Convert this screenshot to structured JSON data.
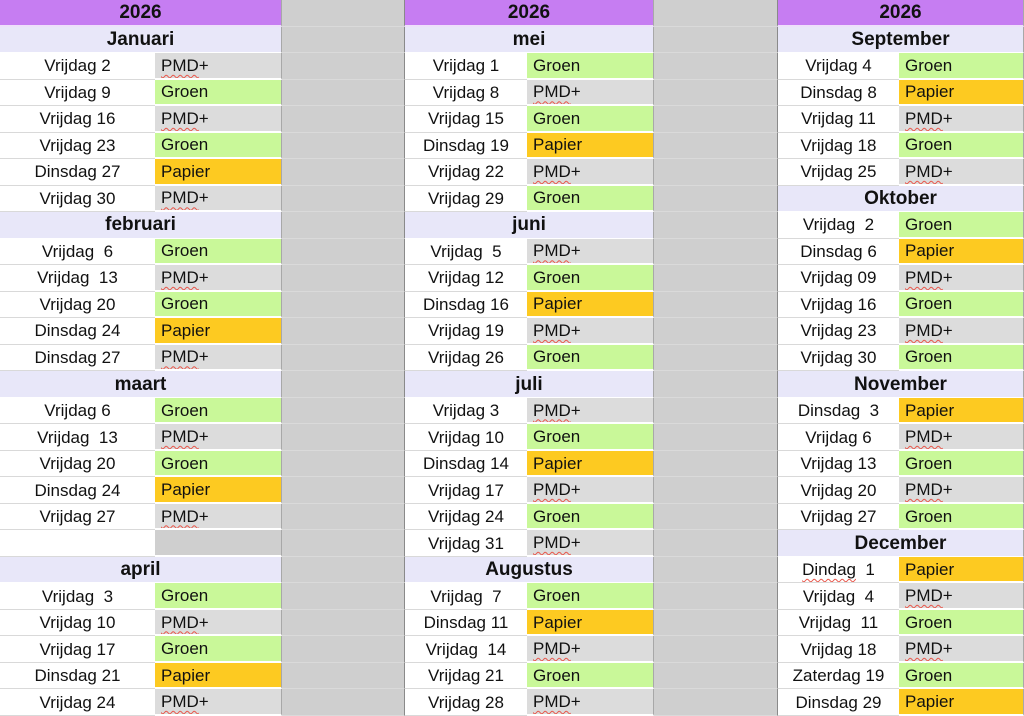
{
  "palette": {
    "year_bg": "#c67df2",
    "month_bg": "#e8e7f9",
    "date_bg": "#ffffff",
    "band_bg": "#cfcfcf",
    "band_line": "#dadada",
    "empty_cell": "#cfcfcf",
    "squiggle": "#e8564a"
  },
  "type_colors": {
    "PMD+": "#dcdcdc",
    "Groen": "#c9f899",
    "Papier": "#fdca21"
  },
  "columns": [
    {
      "year": "2026",
      "months": [
        {
          "name": "Januari",
          "rows": [
            {
              "day": "Vrijdag 2",
              "type": "PMD+"
            },
            {
              "day": "Vrijdag 9",
              "type": "Groen"
            },
            {
              "day": "Vrijdag 16",
              "type": "PMD+"
            },
            {
              "day": "Vrijdag 23",
              "type": "Groen"
            },
            {
              "day": "Dinsdag 27",
              "type": "Papier"
            },
            {
              "day": "Vrijdag 30",
              "type": "PMD+"
            }
          ]
        },
        {
          "name": "februari",
          "rows": [
            {
              "day": "Vrijdag  6",
              "type": "Groen"
            },
            {
              "day": "Vrijdag  13",
              "type": "PMD+"
            },
            {
              "day": "Vrijdag 20",
              "type": "Groen"
            },
            {
              "day": "Dinsdag 24",
              "type": "Papier"
            },
            {
              "day": "Dinsdag 27",
              "type": "PMD+"
            }
          ]
        },
        {
          "name": "maart",
          "rows": [
            {
              "day": "Vrijdag 6",
              "type": "Groen"
            },
            {
              "day": "Vrijdag  13",
              "type": "PMD+"
            },
            {
              "day": "Vrijdag 20",
              "type": "Groen"
            },
            {
              "day": "Dinsdag 24",
              "type": "Papier"
            },
            {
              "day": "Vrijdag 27",
              "type": "PMD+"
            },
            {
              "day": "",
              "type": "",
              "empty": true
            }
          ]
        },
        {
          "name": "april",
          "rows": [
            {
              "day": "Vrijdag  3",
              "type": "Groen"
            },
            {
              "day": "Vrijdag 10",
              "type": "PMD+"
            },
            {
              "day": "Vrijdag 17",
              "type": "Groen"
            },
            {
              "day": "Dinsdag 21",
              "type": "Papier"
            },
            {
              "day": "Vrijdag 24",
              "type": "PMD+"
            }
          ]
        }
      ]
    },
    {
      "year": "2026",
      "months": [
        {
          "name": "mei",
          "rows": [
            {
              "day": "Vrijdag 1",
              "type": "Groen"
            },
            {
              "day": "Vrijdag 8",
              "type": "PMD+"
            },
            {
              "day": "Vrijdag 15",
              "type": "Groen"
            },
            {
              "day": "Dinsdag 19",
              "type": "Papier"
            },
            {
              "day": "Vrijdag 22",
              "type": "PMD+"
            },
            {
              "day": "Vrijdag 29",
              "type": "Groen"
            }
          ]
        },
        {
          "name": "juni",
          "rows": [
            {
              "day": "Vrijdag  5",
              "type": "PMD+"
            },
            {
              "day": "Vrijdag 12",
              "type": "Groen"
            },
            {
              "day": "Dinsdag 16",
              "type": "Papier"
            },
            {
              "day": "Vrijdag 19",
              "type": "PMD+"
            },
            {
              "day": "Vrijdag 26",
              "type": "Groen"
            }
          ]
        },
        {
          "name": "juli",
          "rows": [
            {
              "day": "Vrijdag 3",
              "type": "PMD+"
            },
            {
              "day": "Vrijdag 10",
              "type": "Groen"
            },
            {
              "day": "Dinsdag 14",
              "type": "Papier"
            },
            {
              "day": "Vrijdag 17",
              "type": "PMD+"
            },
            {
              "day": "Vrijdag 24",
              "type": "Groen"
            },
            {
              "day": "Vrijdag 31",
              "type": "PMD+"
            }
          ]
        },
        {
          "name": "Augustus",
          "rows": [
            {
              "day": "Vrijdag  7",
              "type": "Groen"
            },
            {
              "day": "Dinsdag 11",
              "type": "Papier"
            },
            {
              "day": "Vrijdag  14",
              "type": "PMD+"
            },
            {
              "day": "Vrijdag 21",
              "type": "Groen"
            },
            {
              "day": "Vrijdag 28",
              "type": "PMD+"
            }
          ]
        }
      ]
    },
    {
      "year": "2026",
      "months": [
        {
          "name": "September",
          "rows": [
            {
              "day": "Vrijdag 4",
              "type": "Groen"
            },
            {
              "day": "Dinsdag 8",
              "type": "Papier"
            },
            {
              "day": "Vrijdag 11",
              "type": "PMD+"
            },
            {
              "day": "Vrijdag 18",
              "type": "Groen"
            },
            {
              "day": "Vrijdag 25",
              "type": "PMD+"
            }
          ]
        },
        {
          "name": "Oktober",
          "rows": [
            {
              "day": "Vrijdag  2",
              "type": "Groen"
            },
            {
              "day": "Dinsdag 6",
              "type": "Papier"
            },
            {
              "day": "Vrijdag 09",
              "type": "PMD+"
            },
            {
              "day": "Vrijdag 16",
              "type": "Groen"
            },
            {
              "day": "Vrijdag 23",
              "type": "PMD+"
            },
            {
              "day": "Vrijdag 30",
              "type": "Groen"
            }
          ]
        },
        {
          "name": "November",
          "rows": [
            {
              "day": "Dinsdag  3",
              "type": "Papier"
            },
            {
              "day": "Vrijdag 6",
              "type": "PMD+"
            },
            {
              "day": "Vrijdag 13",
              "type": "Groen"
            },
            {
              "day": "Vrijdag 20",
              "type": "PMD+"
            },
            {
              "day": "Vrijdag 27",
              "type": "Groen"
            }
          ]
        },
        {
          "name": "December",
          "rows": [
            {
              "day": "Dindag  1",
              "type": "Papier",
              "day_misspelled": true
            },
            {
              "day": "Vrijdag  4",
              "type": "PMD+"
            },
            {
              "day": "Vrijdag  11",
              "type": "Groen"
            },
            {
              "day": "Vrijdag 18",
              "type": "PMD+"
            },
            {
              "day": "Zaterdag 19",
              "type": "Groen"
            },
            {
              "day": "Dinsdag 29",
              "type": "Papier"
            }
          ]
        }
      ]
    }
  ]
}
